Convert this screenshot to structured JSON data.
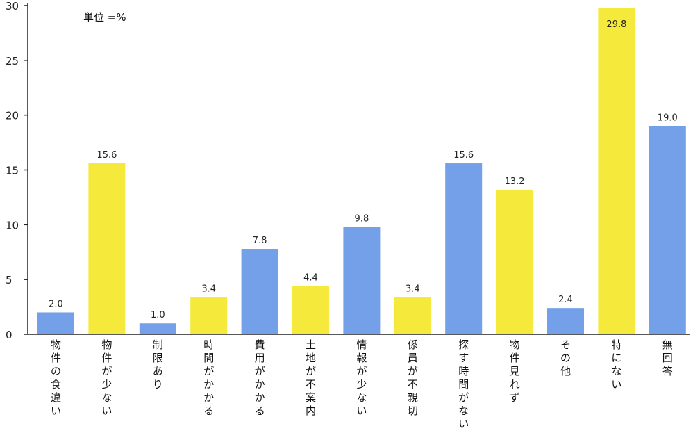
{
  "chart_data": {
    "type": "bar",
    "unit_note": "単位 =%",
    "categories": [
      "物件の食違い",
      "物件が少ない",
      "制限あり",
      "時間がかかる",
      "費用がかかる",
      "土地が不案内",
      "情報が少ない",
      "係員が不親切",
      "探す時間がない",
      "物件見れず",
      "その他",
      "特にない",
      "無回答"
    ],
    "values": [
      2.0,
      15.6,
      1.0,
      3.4,
      7.8,
      4.4,
      9.8,
      3.4,
      15.6,
      13.2,
      2.4,
      29.8,
      19.0
    ],
    "value_labels": [
      "2.0",
      "15.6",
      "1.0",
      "3.4",
      "7.8",
      "4.4",
      "9.8",
      "3.4",
      "15.6",
      "13.2",
      "2.4",
      "29.8",
      "19.0"
    ],
    "bar_colors": [
      "#73a0e9",
      "#f5e93b",
      "#73a0e9",
      "#f5e93b",
      "#73a0e9",
      "#f5e93b",
      "#73a0e9",
      "#f5e93b",
      "#73a0e9",
      "#f5e93b",
      "#73a0e9",
      "#f5e93b",
      "#73a0e9"
    ],
    "ylim": [
      0,
      30
    ],
    "yticks": [
      0,
      5,
      10,
      15,
      20,
      25,
      30
    ],
    "ytick_labels": [
      "0",
      "5",
      "10",
      "15",
      "20",
      "25",
      "30"
    ],
    "xlabel": "",
    "ylabel": "",
    "title": "",
    "grid": false,
    "axis_color": "#222222",
    "category_label_orientation": "vertical"
  }
}
